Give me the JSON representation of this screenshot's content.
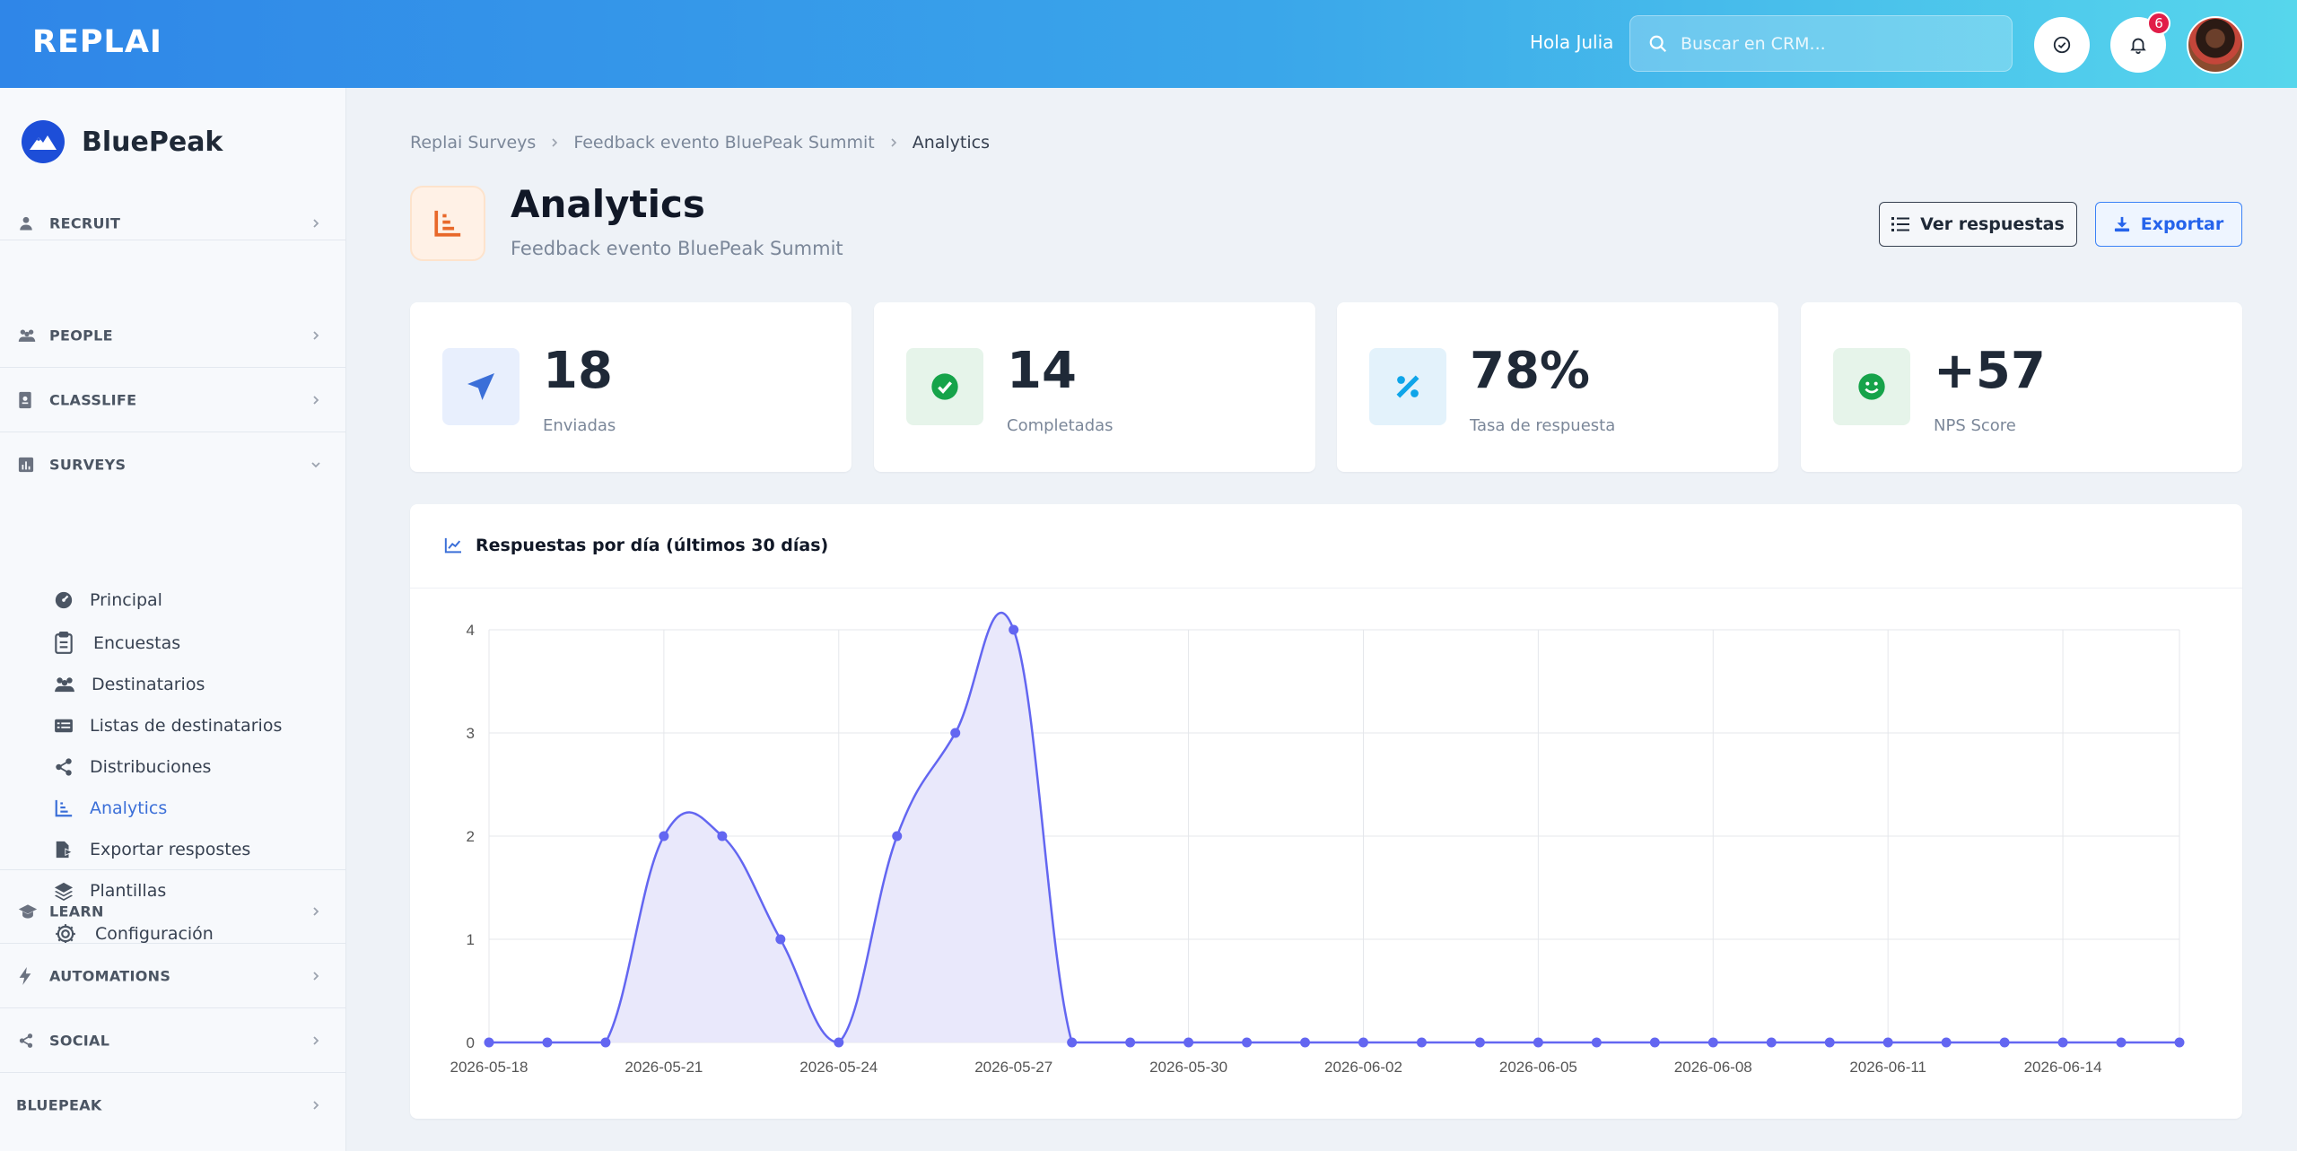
{
  "topbar": {
    "brand": "REPLAI",
    "greeting": "Hola Julia",
    "search_placeholder": "Buscar en CRM...",
    "notifications_count": "6"
  },
  "sidebar": {
    "org_name": "BluePeak",
    "sections": [
      {
        "label": "RECRUIT",
        "icon": "user-tie-icon"
      },
      {
        "label": "PEOPLE",
        "icon": "people-icon"
      },
      {
        "label": "CLASSLIFE",
        "icon": "id-badge-icon"
      },
      {
        "label": "SURVEYS",
        "icon": "bar-chart-icon"
      },
      {
        "label": "LEARN",
        "icon": "graduation-cap-icon"
      },
      {
        "label": "AUTOMATIONS",
        "icon": "bolt-icon"
      },
      {
        "label": "SOCIAL",
        "icon": "share-icon"
      },
      {
        "label": "BLUEPEAK",
        "icon": ""
      }
    ],
    "surveys_items": [
      {
        "label": "Principal",
        "icon": "gauge-icon"
      },
      {
        "label": "Encuestas",
        "icon": "clipboard-icon"
      },
      {
        "label": "Destinatarios",
        "icon": "users-icon"
      },
      {
        "label": "Listas de destinatarios",
        "icon": "list-card-icon"
      },
      {
        "label": "Distribuciones",
        "icon": "share-nodes-icon"
      },
      {
        "label": "Analytics",
        "icon": "chart-icon",
        "active": true
      },
      {
        "label": "Exportar respostes",
        "icon": "file-export-icon"
      },
      {
        "label": "Plantillas",
        "icon": "layers-icon"
      },
      {
        "label": "Configuración",
        "icon": "gear-icon"
      }
    ]
  },
  "breadcrumb": [
    "Replai Surveys",
    "Feedback evento BluePeak Summit",
    "Analytics"
  ],
  "page": {
    "title": "Analytics",
    "subtitle": "Feedback evento BluePeak Summit",
    "view_button": "Ver respuestas",
    "export_button": "Exportar"
  },
  "stats": [
    {
      "value": "18",
      "label": "Enviadas",
      "icon": "paper-plane-icon",
      "color": "#3b6fd8",
      "bg": "#e8effd"
    },
    {
      "value": "14",
      "label": "Completadas",
      "icon": "check-circle-icon",
      "color": "#16a34a",
      "bg": "#e6f4ea"
    },
    {
      "value": "78%",
      "label": "Tasa de respuesta",
      "icon": "percent-icon",
      "color": "#0ea5e9",
      "bg": "#e3f2fb"
    },
    {
      "value": "+57",
      "label": "NPS Score",
      "icon": "smile-icon",
      "color": "#16a34a",
      "bg": "#e6f4ea"
    }
  ],
  "chart_card_title": "Respuestas por día (últimos 30 días)",
  "chart_data": {
    "type": "area",
    "title": "Respuestas por día (últimos 30 días)",
    "x": [
      "2026-05-18",
      "2026-05-19",
      "2026-05-20",
      "2026-05-21",
      "2026-05-22",
      "2026-05-23",
      "2026-05-24",
      "2026-05-25",
      "2026-05-26",
      "2026-05-27",
      "2026-05-28",
      "2026-05-29",
      "2026-05-30",
      "2026-05-31",
      "2026-06-01",
      "2026-06-02",
      "2026-06-03",
      "2026-06-04",
      "2026-06-05",
      "2026-06-06",
      "2026-06-07",
      "2026-06-08",
      "2026-06-09",
      "2026-06-10",
      "2026-06-11",
      "2026-06-12",
      "2026-06-13",
      "2026-06-14",
      "2026-06-15",
      "2026-06-16"
    ],
    "values": [
      0,
      0,
      0,
      2,
      2,
      1,
      0,
      2,
      3,
      4,
      0,
      0,
      0,
      0,
      0,
      0,
      0,
      0,
      0,
      0,
      0,
      0,
      0,
      0,
      0,
      0,
      0,
      0,
      0,
      0
    ],
    "xticks": [
      "2026-05-18",
      "2026-05-21",
      "2026-05-24",
      "2026-05-27",
      "2026-05-30",
      "2026-06-02",
      "2026-06-05",
      "2026-06-08",
      "2026-06-11",
      "2026-06-14"
    ],
    "yticks": [
      0,
      1,
      2,
      3,
      4
    ],
    "ylim": [
      0,
      4
    ],
    "grid": true,
    "line_color": "#6366f1",
    "fill_color": "#e9e8fb"
  }
}
